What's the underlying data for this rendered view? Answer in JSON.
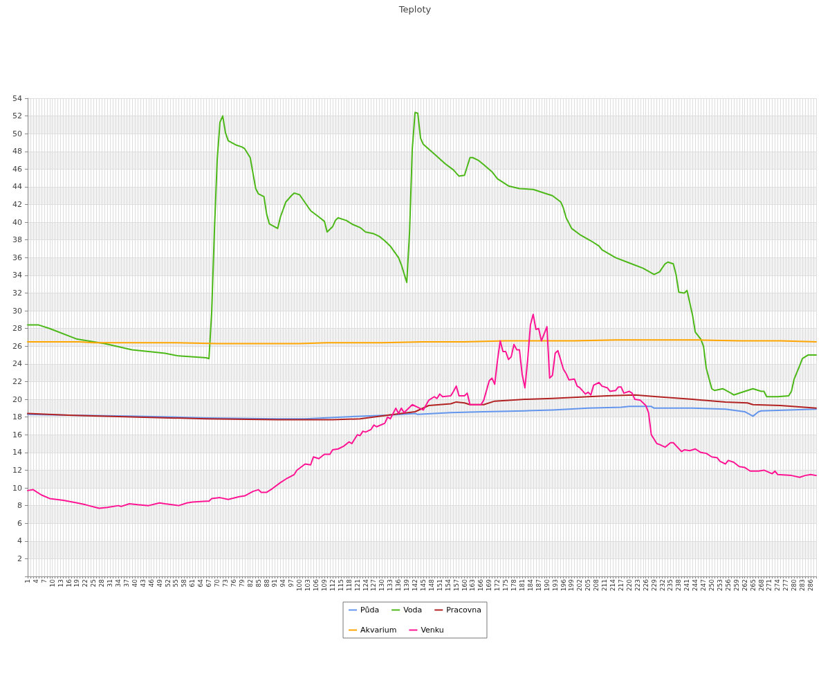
{
  "chart_data": {
    "type": "line",
    "title": "Teploty",
    "xlim": [
      1,
      288
    ],
    "xticks": [
      1,
      {
        "value": 2,
        "label": null
      },
      {
        "value": 3,
        "label": null
      },
      4,
      {
        "value": 5,
        "label": null
      },
      {
        "value": 6,
        "label": null
      },
      7,
      {
        "value": 8,
        "label": null
      },
      {
        "value": 9,
        "label": null
      },
      10,
      {
        "value": 11,
        "label": null
      },
      {
        "value": 12,
        "label": null
      },
      13,
      {
        "value": 14,
        "label": null
      },
      {
        "value": 15,
        "label": null
      },
      16,
      {
        "value": 17,
        "label": null
      },
      {
        "value": 18,
        "label": null
      },
      19,
      {
        "value": 20,
        "label": null
      },
      {
        "value": 21,
        "label": null
      },
      22,
      {
        "value": 23,
        "label": null
      },
      {
        "value": 24,
        "label": null
      },
      25,
      {
        "value": 26,
        "label": null
      },
      {
        "value": 27,
        "label": null
      },
      28,
      {
        "value": 29,
        "label": null
      },
      {
        "value": 30,
        "label": null
      },
      31,
      {
        "value": 32,
        "label": null
      },
      {
        "value": 33,
        "label": null
      },
      34,
      {
        "value": 35,
        "label": null
      },
      {
        "value": 36,
        "label": null
      },
      37,
      {
        "value": 38,
        "label": null
      },
      {
        "value": 39,
        "label": null
      },
      40,
      {
        "value": 41,
        "label": null
      },
      {
        "value": 42,
        "label": null
      },
      43,
      {
        "value": 44,
        "label": null
      },
      {
        "value": 45,
        "label": null
      },
      46,
      {
        "value": 47,
        "label": null
      },
      {
        "value": 48,
        "label": null
      },
      49,
      {
        "value": 50,
        "label": null
      },
      {
        "value": 51,
        "label": null
      },
      52,
      {
        "value": 53,
        "label": null
      },
      {
        "value": 54,
        "label": null
      },
      55,
      {
        "value": 56,
        "label": null
      },
      {
        "value": 57,
        "label": null
      },
      58,
      {
        "value": 59,
        "label": null
      },
      {
        "value": 60,
        "label": null
      },
      61,
      {
        "value": 62,
        "label": null
      },
      {
        "value": 63,
        "label": null
      },
      64,
      {
        "value": 65,
        "label": null
      },
      {
        "value": 66,
        "label": null
      },
      67,
      {
        "value": 68,
        "label": null
      },
      {
        "value": 69,
        "label": null
      },
      70,
      {
        "value": 71,
        "label": null
      },
      {
        "value": 72,
        "label": null
      },
      73,
      {
        "value": 74,
        "label": null
      },
      {
        "value": 75,
        "label": null
      },
      76,
      {
        "value": 77,
        "label": null
      },
      {
        "value": 78,
        "label": null
      },
      79,
      {
        "value": 80,
        "label": null
      },
      {
        "value": 81,
        "label": null
      },
      82,
      {
        "value": 83,
        "label": null
      },
      {
        "value": 84,
        "label": null
      },
      85,
      {
        "value": 86,
        "label": null
      },
      {
        "value": 87,
        "label": null
      },
      88,
      {
        "value": 89,
        "label": null
      },
      {
        "value": 90,
        "label": null
      },
      91,
      {
        "value": 92,
        "label": null
      },
      {
        "value": 93,
        "label": null
      },
      94,
      {
        "value": 95,
        "label": null
      },
      {
        "value": 96,
        "label": null
      },
      97,
      {
        "value": 98,
        "label": null
      },
      {
        "value": 99,
        "label": null
      },
      100,
      {
        "value": 101,
        "label": null
      },
      {
        "value": 102,
        "label": null
      },
      103,
      {
        "value": 104,
        "label": null
      },
      {
        "value": 105,
        "label": null
      },
      106,
      {
        "value": 107,
        "label": null
      },
      {
        "value": 108,
        "label": null
      },
      109,
      {
        "value": 110,
        "label": null
      },
      {
        "value": 111,
        "label": null
      },
      112,
      {
        "value": 113,
        "label": null
      },
      {
        "value": 114,
        "label": null
      },
      115,
      {
        "value": 116,
        "label": null
      },
      {
        "value": 117,
        "label": null
      },
      118,
      {
        "value": 119,
        "label": null
      },
      {
        "value": 120,
        "label": null
      },
      121,
      {
        "value": 122,
        "label": null
      },
      {
        "value": 123,
        "label": null
      },
      124,
      {
        "value": 125,
        "label": null
      },
      {
        "value": 126,
        "label": null
      },
      127,
      {
        "value": 128,
        "label": null
      },
      {
        "value": 129,
        "label": null
      },
      130,
      {
        "value": 131,
        "label": null
      },
      {
        "value": 132,
        "label": null
      },
      133,
      {
        "value": 134,
        "label": null
      },
      {
        "value": 135,
        "label": null
      },
      136,
      {
        "value": 137,
        "label": null
      },
      {
        "value": 138,
        "label": null
      },
      139,
      {
        "value": 140,
        "label": null
      },
      {
        "value": 141,
        "label": null
      },
      142,
      {
        "value": 143,
        "label": null
      },
      {
        "value": 144,
        "label": null
      },
      145,
      {
        "value": 146,
        "label": null
      },
      {
        "value": 147,
        "label": null
      },
      148,
      {
        "value": 149,
        "label": null
      },
      {
        "value": 150,
        "label": null
      },
      151,
      {
        "value": 152,
        "label": null
      },
      {
        "value": 153,
        "label": null
      },
      154,
      {
        "value": 155,
        "label": null
      },
      {
        "value": 156,
        "label": null
      },
      157,
      {
        "value": 158,
        "label": null
      },
      {
        "value": 159,
        "label": null
      },
      160,
      {
        "value": 161,
        "label": null
      },
      {
        "value": 162,
        "label": null
      },
      163,
      {
        "value": 164,
        "label": null
      },
      {
        "value": 165,
        "label": null
      },
      166,
      {
        "value": 167,
        "label": null
      },
      {
        "value": 168,
        "label": null
      },
      169,
      {
        "value": 170,
        "label": null
      },
      {
        "value": 171,
        "label": null
      },
      172,
      {
        "value": 173,
        "label": null
      },
      {
        "value": 174,
        "label": null
      },
      175,
      {
        "value": 176,
        "label": null
      },
      {
        "value": 177,
        "label": null
      },
      178,
      {
        "value": 179,
        "label": null
      },
      {
        "value": 180,
        "label": null
      },
      181,
      {
        "value": 182,
        "label": null
      },
      {
        "value": 183,
        "label": null
      },
      184,
      {
        "value": 185,
        "label": null
      },
      {
        "value": 186,
        "label": null
      },
      187,
      {
        "value": 188,
        "label": null
      },
      {
        "value": 189,
        "label": null
      },
      190,
      {
        "value": 191,
        "label": null
      },
      {
        "value": 192,
        "label": null
      },
      193,
      {
        "value": 194,
        "label": null
      },
      {
        "value": 195,
        "label": null
      },
      196,
      {
        "value": 197,
        "label": null
      },
      {
        "value": 198,
        "label": null
      },
      199,
      {
        "value": 200,
        "label": null
      },
      {
        "value": 201,
        "label": null
      },
      202,
      {
        "value": 203,
        "label": null
      },
      {
        "value": 204,
        "label": null
      },
      205,
      {
        "value": 206,
        "label": null
      },
      {
        "value": 207,
        "label": null
      },
      208,
      {
        "value": 209,
        "label": null
      },
      {
        "value": 210,
        "label": null
      },
      211,
      {
        "value": 212,
        "label": null
      },
      {
        "value": 213,
        "label": null
      },
      214,
      {
        "value": 215,
        "label": null
      },
      {
        "value": 216,
        "label": null
      },
      217,
      {
        "value": 218,
        "label": null
      },
      {
        "value": 219,
        "label": null
      },
      220,
      {
        "value": 221,
        "label": null
      },
      {
        "value": 222,
        "label": null
      },
      223,
      {
        "value": 224,
        "label": null
      },
      {
        "value": 225,
        "label": null
      },
      226,
      {
        "value": 227,
        "label": null
      },
      {
        "value": 228,
        "label": null
      },
      229,
      {
        "value": 230,
        "label": null
      },
      {
        "value": 231,
        "label": null
      },
      232,
      {
        "value": 233,
        "label": null
      },
      {
        "value": 234,
        "label": null
      },
      235,
      {
        "value": 236,
        "label": null
      },
      {
        "value": 237,
        "label": null
      },
      238,
      {
        "value": 239,
        "label": null
      },
      {
        "value": 240,
        "label": null
      },
      241,
      {
        "value": 242,
        "label": null
      },
      {
        "value": 243,
        "label": null
      },
      244,
      {
        "value": 245,
        "label": null
      },
      {
        "value": 246,
        "label": null
      },
      247,
      {
        "value": 248,
        "label": null
      },
      {
        "value": 249,
        "label": null
      },
      250,
      {
        "value": 251,
        "label": null
      },
      {
        "value": 252,
        "label": null
      },
      253,
      {
        "value": 254,
        "label": null
      },
      {
        "value": 255,
        "label": null
      },
      256,
      {
        "value": 257,
        "label": null
      },
      {
        "value": 258,
        "label": null
      },
      259,
      {
        "value": 260,
        "label": null
      },
      {
        "value": 261,
        "label": null
      },
      262,
      {
        "value": 263,
        "label": null
      },
      {
        "value": 264,
        "label": null
      },
      265,
      {
        "value": 266,
        "label": null
      },
      {
        "value": 267,
        "label": null
      },
      268,
      {
        "value": 269,
        "label": null
      },
      {
        "value": 270,
        "label": null
      },
      271,
      {
        "value": 272,
        "label": null
      },
      {
        "value": 273,
        "label": null
      },
      274,
      {
        "value": 275,
        "label": null
      },
      {
        "value": 276,
        "label": null
      },
      277,
      {
        "value": 278,
        "label": null
      },
      {
        "value": 279,
        "label": null
      },
      280,
      {
        "value": 281,
        "label": null
      },
      {
        "value": 282,
        "label": null
      },
      283,
      {
        "value": 284,
        "label": null
      },
      {
        "value": 285,
        "label": null
      },
      286,
      {
        "value": 287,
        "label": null
      },
      {
        "value": 288,
        "label": null
      }
    ],
    "ylim": [
      0,
      54
    ],
    "yticks": [
      {
        "value": 0,
        "label": null
      },
      2,
      4,
      6,
      8,
      10,
      12,
      14,
      16,
      18,
      20,
      22,
      24,
      26,
      28,
      30,
      32,
      34,
      36,
      38,
      40,
      42,
      44,
      46,
      48,
      50,
      52,
      54
    ],
    "grid": true,
    "legend": "bottom",
    "marker": "none",
    "line_style": "solid",
    "series": [
      {
        "name": "Půda",
        "color": "#6495ed",
        "x": [
          1,
          16,
          41,
          66,
          92,
          102,
          122,
          132,
          142,
          143,
          155,
          167,
          182,
          192,
          205,
          217,
          220,
          228,
          229,
          243,
          255,
          262,
          265,
          267,
          268,
          288
        ],
        "values": [
          18.3,
          18.2,
          18.1,
          17.9,
          17.8,
          17.8,
          18.1,
          18.2,
          18.4,
          18.3,
          18.5,
          18.6,
          18.7,
          18.8,
          19.0,
          19.1,
          19.2,
          19.2,
          19.0,
          19.0,
          18.9,
          18.6,
          18.1,
          18.6,
          18.7,
          18.9
        ]
      },
      {
        "name": "Voda",
        "color": "#4cb817",
        "x": [
          1,
          5,
          9,
          19,
          29,
          39,
          51,
          56,
          66,
          67,
          68,
          69,
          70,
          71,
          72,
          73,
          74,
          77,
          79,
          80,
          82,
          84,
          85,
          87,
          88,
          89,
          92,
          93,
          95,
          97,
          98,
          100,
          102,
          104,
          107,
          109,
          110,
          112,
          113,
          114,
          117,
          119,
          122,
          124,
          127,
          129,
          131,
          133,
          136,
          137,
          139,
          140,
          141,
          142,
          143,
          144,
          145,
          149,
          153,
          156,
          158,
          160,
          161,
          162,
          163,
          165,
          167,
          170,
          172,
          176,
          180,
          185,
          190,
          192,
          195,
          196,
          197,
          199,
          202,
          206,
          209,
          210,
          215,
          220,
          225,
          229,
          231,
          233,
          234,
          236,
          237,
          238,
          240,
          241,
          243,
          244,
          246,
          247,
          248,
          250,
          251,
          254,
          257,
          258,
          263,
          265,
          268,
          269,
          270,
          274,
          278,
          279,
          280,
          282,
          283,
          285,
          288
        ],
        "values": [
          28.4,
          28.4,
          28.0,
          26.8,
          26.3,
          25.6,
          25.2,
          24.9,
          24.7,
          24.6,
          30.0,
          39.3,
          47.1,
          51.3,
          52.0,
          50.1,
          49.2,
          48.7,
          48.5,
          48.3,
          47.3,
          43.8,
          43.2,
          42.9,
          40.9,
          39.8,
          39.3,
          40.6,
          42.3,
          43.0,
          43.3,
          43.1,
          42.2,
          41.3,
          40.6,
          40.1,
          38.9,
          39.5,
          40.2,
          40.5,
          40.2,
          39.8,
          39.4,
          38.9,
          38.7,
          38.4,
          37.9,
          37.3,
          36.0,
          35.2,
          33.2,
          38.9,
          48.3,
          52.4,
          52.3,
          49.5,
          48.8,
          47.7,
          46.6,
          45.9,
          45.2,
          45.3,
          46.3,
          47.3,
          47.3,
          47.0,
          46.5,
          45.7,
          44.9,
          44.1,
          43.8,
          43.7,
          43.2,
          43.0,
          42.3,
          41.6,
          40.5,
          39.3,
          38.6,
          37.9,
          37.3,
          36.9,
          36.0,
          35.4,
          34.8,
          34.1,
          34.4,
          35.3,
          35.5,
          35.3,
          34.1,
          32.1,
          32.0,
          32.3,
          29.5,
          27.6,
          26.8,
          26.0,
          23.5,
          21.2,
          21.0,
          21.2,
          20.7,
          20.5,
          21.0,
          21.2,
          20.9,
          20.9,
          20.3,
          20.3,
          20.4,
          20.9,
          22.3,
          23.8,
          24.6,
          25.0,
          25.0
        ]
      },
      {
        "name": "Pracovna",
        "color": "#b22222",
        "x": [
          1,
          16,
          41,
          66,
          92,
          107,
          112,
          122,
          132,
          142,
          147,
          155,
          157,
          160,
          162,
          167,
          171,
          182,
          192,
          205,
          212,
          222,
          230,
          243,
          255,
          263,
          265,
          275,
          288
        ],
        "values": [
          18.4,
          18.2,
          18.0,
          17.8,
          17.7,
          17.7,
          17.7,
          17.8,
          18.2,
          18.6,
          19.3,
          19.5,
          19.7,
          19.6,
          19.4,
          19.4,
          19.8,
          20.0,
          20.1,
          20.3,
          20.4,
          20.5,
          20.3,
          20.0,
          19.7,
          19.6,
          19.4,
          19.3,
          19.0
        ]
      },
      {
        "name": "Akvarium",
        "color": "#ffa500",
        "x": [
          1,
          20,
          25,
          40,
          55,
          70,
          85,
          100,
          110,
          130,
          145,
          160,
          175,
          200,
          215,
          230,
          245,
          260,
          275,
          288
        ],
        "values": [
          26.5,
          26.5,
          26.4,
          26.4,
          26.4,
          26.3,
          26.3,
          26.3,
          26.4,
          26.4,
          26.5,
          26.5,
          26.6,
          26.6,
          26.7,
          26.7,
          26.7,
          26.6,
          26.6,
          26.5
        ]
      },
      {
        "name": "Venku",
        "color": "#ff1493",
        "x": [
          1,
          3,
          6,
          9,
          14,
          19,
          22,
          27,
          30,
          34,
          35,
          38,
          41,
          45,
          49,
          51,
          56,
          59,
          61,
          66,
          67,
          68,
          71,
          74,
          78,
          80,
          83,
          85,
          86,
          88,
          90,
          93,
          95,
          98,
          99,
          102,
          104,
          105,
          107,
          109,
          111,
          112,
          114,
          116,
          118,
          119,
          121,
          122,
          123,
          124,
          126,
          127,
          128,
          131,
          132,
          133,
          135,
          136,
          137,
          138,
          141,
          143,
          145,
          147,
          149,
          150,
          151,
          152,
          155,
          156,
          157,
          158,
          160,
          161,
          162,
          166,
          167,
          169,
          170,
          171,
          172,
          173,
          174,
          175,
          176,
          177,
          178,
          179,
          180,
          181,
          182,
          183,
          184,
          185,
          186,
          187,
          188,
          189,
          190,
          191,
          192,
          193,
          194,
          196,
          197,
          198,
          200,
          201,
          202,
          204,
          205,
          206,
          207,
          209,
          210,
          212,
          213,
          215,
          216,
          217,
          218,
          220,
          221,
          222,
          224,
          226,
          227,
          228,
          230,
          231,
          233,
          235,
          236,
          239,
          240,
          242,
          244,
          246,
          248,
          250,
          252,
          253,
          255,
          256,
          258,
          260,
          262,
          264,
          267,
          269,
          272,
          273,
          274,
          279,
          282,
          284,
          286,
          288
        ],
        "values": [
          9.7,
          9.8,
          9.2,
          8.8,
          8.6,
          8.3,
          8.1,
          7.7,
          7.8,
          8.0,
          7.9,
          8.2,
          8.1,
          8.0,
          8.3,
          8.2,
          8.0,
          8.3,
          8.4,
          8.5,
          8.5,
          8.8,
          8.9,
          8.7,
          9.0,
          9.1,
          9.6,
          9.8,
          9.5,
          9.5,
          9.9,
          10.6,
          11.0,
          11.5,
          12.0,
          12.7,
          12.6,
          13.5,
          13.3,
          13.8,
          13.8,
          14.3,
          14.4,
          14.7,
          15.2,
          15.0,
          16.0,
          15.9,
          16.4,
          16.3,
          16.6,
          17.1,
          16.9,
          17.3,
          18.0,
          17.8,
          19.0,
          18.4,
          19.0,
          18.5,
          19.4,
          19.1,
          18.8,
          19.9,
          20.3,
          20.1,
          20.6,
          20.3,
          20.4,
          20.9,
          21.5,
          20.4,
          20.4,
          20.7,
          19.4,
          19.4,
          19.9,
          22.1,
          22.4,
          21.7,
          24.4,
          26.6,
          25.4,
          25.4,
          24.5,
          24.8,
          26.2,
          25.6,
          25.6,
          22.8,
          21.3,
          24.5,
          28.4,
          29.6,
          27.9,
          28.0,
          26.6,
          27.4,
          28.2,
          22.4,
          22.7,
          25.2,
          25.5,
          23.4,
          22.9,
          22.2,
          22.3,
          21.5,
          21.3,
          20.6,
          20.8,
          20.5,
          21.6,
          21.9,
          21.5,
          21.3,
          20.9,
          21.0,
          21.4,
          21.4,
          20.7,
          20.9,
          20.7,
          20.0,
          19.9,
          19.3,
          18.5,
          16.0,
          15.0,
          14.9,
          14.6,
          15.1,
          15.1,
          14.1,
          14.3,
          14.2,
          14.4,
          14.0,
          13.9,
          13.5,
          13.4,
          13.0,
          12.7,
          13.1,
          12.9,
          12.4,
          12.3,
          11.9,
          11.9,
          12.0,
          11.6,
          11.9,
          11.5,
          11.4,
          11.2,
          11.4,
          11.5,
          11.4
        ]
      }
    ]
  }
}
